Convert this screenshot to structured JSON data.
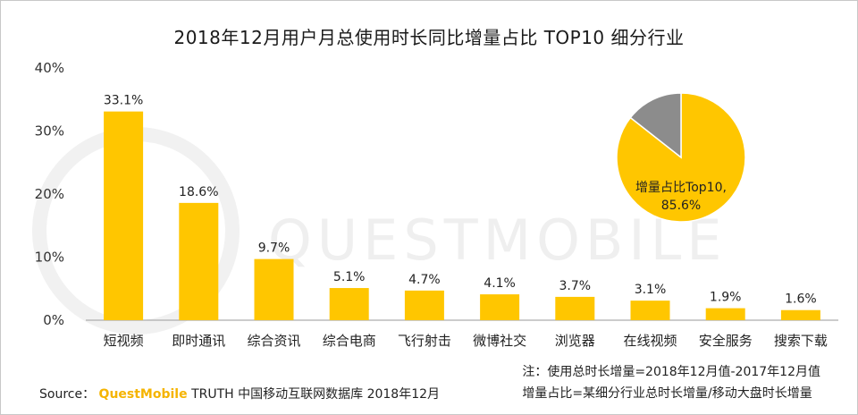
{
  "title": "2018年12月用户月总使用时长同比增量占比 TOP10 细分行业",
  "watermark": "QUESTMOBILE",
  "chart_data": {
    "type": "bar",
    "categories": [
      "短视频",
      "即时通讯",
      "综合资讯",
      "综合电商",
      "飞行射击",
      "微博社交",
      "浏览器",
      "在线视频",
      "安全服务",
      "搜索下载"
    ],
    "values": [
      33.1,
      18.6,
      9.7,
      5.1,
      4.7,
      4.1,
      3.7,
      3.1,
      1.9,
      1.6
    ],
    "data_labels": [
      "33.1%",
      "18.6%",
      "9.7%",
      "5.1%",
      "4.7%",
      "4.1%",
      "3.7%",
      "3.1%",
      "1.9%",
      "1.6%"
    ],
    "ylim": [
      0,
      40
    ],
    "yticks": [
      "0%",
      "10%",
      "20%",
      "30%",
      "40%"
    ],
    "bar_color": "#FFC600",
    "inset_pie": {
      "type": "pie",
      "slices": [
        {
          "label": "增量占比Top10,",
          "value_label": "85.6%",
          "value": 85.6,
          "color": "#FFC600"
        },
        {
          "label": "",
          "value": 14.4,
          "color": "#8c8c8c"
        }
      ]
    }
  },
  "notes": {
    "line1": "注：使用总时长增量=2018年12月值-2017年12月值",
    "line2": "增量占比=某细分行业总时长增量/移动大盘时长增量"
  },
  "source": {
    "label": "Source：",
    "brand": "QuestMobile",
    "rest": "TRUTH 中国移动互联网数据库 2018年12月"
  }
}
